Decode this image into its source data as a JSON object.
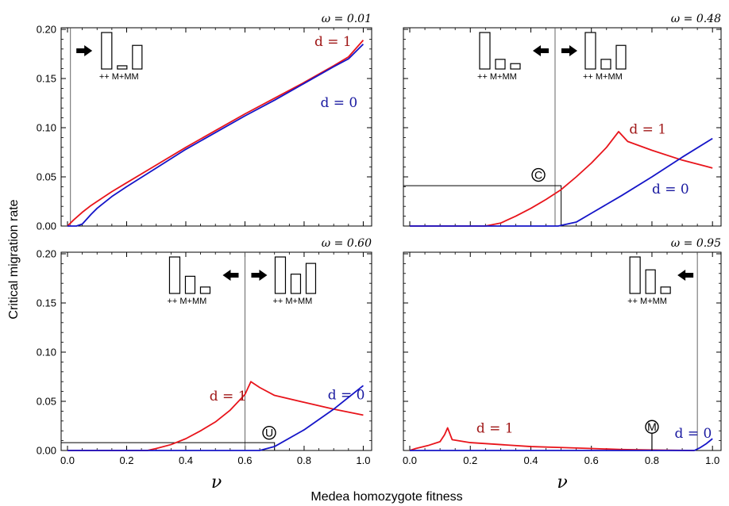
{
  "xlabel": "Medea homozygote fitness",
  "ylabel": "Critical migration rate",
  "nu_symbol": "ν",
  "genotype_label": "++ M+MM",
  "colors": {
    "d1": "#e8141b",
    "d0": "#1515c8",
    "d1_label": "#a01818",
    "d0_label": "#1a1aa0"
  },
  "chart_data": [
    {
      "type": "line",
      "panel": "top-left",
      "omega_label": "ω = 0.01",
      "xlim": [
        0,
        1
      ],
      "ylim": [
        0,
        0.2
      ],
      "xticks": [
        "0.0",
        "0.2",
        "0.4",
        "0.6",
        "0.8",
        "1.0"
      ],
      "yticks": [
        "0.00",
        "0.05",
        "0.10",
        "0.15",
        "0.20"
      ],
      "show_xticks": false,
      "show_yticks": true,
      "show_nu": false,
      "vline": 0.01,
      "arrows": [
        "right"
      ],
      "bar_groups": [
        {
          "heights": [
            0.34,
            0.03,
            0.22
          ],
          "arrow_side": "left"
        }
      ],
      "series": [
        {
          "name": "d = 1",
          "color": "d1",
          "x": [
            0,
            0.02,
            0.05,
            0.08,
            0.1,
            0.15,
            0.2,
            0.3,
            0.4,
            0.5,
            0.6,
            0.7,
            0.8,
            0.9,
            0.95,
            1.0
          ],
          "y": [
            0,
            0.006,
            0.014,
            0.021,
            0.025,
            0.035,
            0.044,
            0.062,
            0.08,
            0.097,
            0.114,
            0.13,
            0.146,
            0.163,
            0.172,
            0.189
          ]
        },
        {
          "name": "d = 0",
          "color": "d0",
          "x": [
            0,
            0.03,
            0.05,
            0.08,
            0.1,
            0.15,
            0.2,
            0.3,
            0.4,
            0.5,
            0.6,
            0.7,
            0.8,
            0.9,
            0.95,
            1.0
          ],
          "y": [
            0,
            0,
            0.002,
            0.012,
            0.018,
            0.03,
            0.04,
            0.059,
            0.078,
            0.095,
            0.112,
            0.128,
            0.145,
            0.162,
            0.17,
            0.185
          ]
        }
      ],
      "series_labels": [
        {
          "text": "d = 1",
          "color": "d1_label",
          "x": 0.835,
          "y": 0.183
        },
        {
          "text": "d = 0",
          "color": "d0_label",
          "x": 0.855,
          "y": 0.121
        }
      ]
    },
    {
      "type": "line",
      "panel": "top-right",
      "omega_label": "ω = 0.48",
      "xlim": [
        0,
        1
      ],
      "ylim": [
        0,
        0.2
      ],
      "show_xticks": false,
      "show_yticks": false,
      "show_nu": false,
      "vline": 0.48,
      "arrows": [
        "left",
        "right"
      ],
      "bar_groups": [
        {
          "heights": [
            0.34,
            0.09,
            0.05
          ]
        },
        {
          "heights": [
            0.34,
            0.09,
            0.22
          ]
        }
      ],
      "markers": [
        {
          "letter": "C",
          "x": 0.49,
          "y": 0.041,
          "label_x": 0.425,
          "label_y": 0.052,
          "stem_bottom": 0
        }
      ],
      "crosshair": {
        "x": 0.5,
        "y": 0.041
      },
      "series": [
        {
          "name": "d = 1",
          "color": "d1",
          "x": [
            0,
            0.25,
            0.3,
            0.35,
            0.4,
            0.45,
            0.5,
            0.55,
            0.6,
            0.65,
            0.69,
            0.72,
            0.8,
            0.9,
            1.0
          ],
          "y": [
            0,
            0,
            0.003,
            0.01,
            0.018,
            0.027,
            0.037,
            0.05,
            0.064,
            0.08,
            0.096,
            0.086,
            0.077,
            0.067,
            0.059
          ]
        },
        {
          "name": "d = 0",
          "color": "d0",
          "x": [
            0,
            0.49,
            0.55,
            0.6,
            0.7,
            0.8,
            0.9,
            1.0
          ],
          "y": [
            0,
            0,
            0.004,
            0.013,
            0.031,
            0.05,
            0.07,
            0.089
          ]
        }
      ],
      "series_labels": [
        {
          "text": "d = 1",
          "color": "d1_label",
          "x": 0.725,
          "y": 0.094
        },
        {
          "text": "d = 0",
          "color": "d0_label",
          "x": 0.8,
          "y": 0.033
        }
      ]
    },
    {
      "type": "line",
      "panel": "bottom-left",
      "omega_label": "ω = 0.60",
      "xlim": [
        0,
        1
      ],
      "ylim": [
        0,
        0.2
      ],
      "show_xticks": true,
      "show_yticks": true,
      "show_nu": true,
      "vline": 0.6,
      "arrows": [
        "left",
        "right"
      ],
      "bar_groups": [
        {
          "heights": [
            0.34,
            0.16,
            0.06
          ]
        },
        {
          "heights": [
            0.34,
            0.18,
            0.28
          ]
        }
      ],
      "markers": [
        {
          "letter": "U",
          "x": 0.7,
          "y": 0.008,
          "label_x": 0.682,
          "label_y": 0.018,
          "stem_bottom": 0
        }
      ],
      "crosshair": {
        "x": 0.7,
        "y": 0.008
      },
      "series": [
        {
          "name": "d = 1",
          "color": "d1",
          "x": [
            0,
            0.27,
            0.3,
            0.35,
            0.4,
            0.45,
            0.5,
            0.55,
            0.6,
            0.62,
            0.65,
            0.7,
            0.8,
            0.9,
            1.0
          ],
          "y": [
            0,
            0,
            0.002,
            0.006,
            0.012,
            0.02,
            0.029,
            0.041,
            0.057,
            0.07,
            0.064,
            0.056,
            0.049,
            0.042,
            0.036
          ]
        },
        {
          "name": "d = 0",
          "color": "d0",
          "x": [
            0,
            0.65,
            0.7,
            0.8,
            0.9,
            1.0
          ],
          "y": [
            0,
            0,
            0.004,
            0.021,
            0.042,
            0.066
          ]
        }
      ],
      "series_labels": [
        {
          "text": "d = 1",
          "color": "d1_label",
          "x": 0.48,
          "y": 0.051
        },
        {
          "text": "d = 0",
          "color": "d0_label",
          "x": 0.88,
          "y": 0.052
        }
      ]
    },
    {
      "type": "line",
      "panel": "bottom-right",
      "omega_label": "ω = 0.95",
      "xlim": [
        0,
        1
      ],
      "ylim": [
        0,
        0.2
      ],
      "show_xticks": true,
      "show_yticks": false,
      "show_nu": true,
      "vline": 0.95,
      "arrows": [
        "left"
      ],
      "bar_groups": [
        {
          "heights": [
            0.34,
            0.22,
            0.06
          ],
          "arrow_side": "right"
        }
      ],
      "markers": [
        {
          "letter": "M",
          "x": 0.8,
          "y": 0.0,
          "label_x": 0.8,
          "label_y": 0.024,
          "stem_bottom": 0
        }
      ],
      "series": [
        {
          "name": "d = 1",
          "color": "d1",
          "x": [
            0,
            0.02,
            0.06,
            0.1,
            0.115,
            0.125,
            0.14,
            0.2,
            0.3,
            0.4,
            0.5,
            0.6,
            0.7,
            0.8,
            0.94
          ],
          "y": [
            0,
            0.002,
            0.005,
            0.009,
            0.016,
            0.023,
            0.011,
            0.008,
            0.006,
            0.004,
            0.003,
            0.002,
            0.001,
            0.0005,
            0
          ]
        },
        {
          "name": "d = 0",
          "color": "d0",
          "x": [
            0,
            0.94,
            0.96,
            0.98,
            1.0
          ],
          "y": [
            0,
            0,
            0.003,
            0.007,
            0.012
          ]
        }
      ],
      "series_labels": [
        {
          "text": "d = 1",
          "color": "d1_label",
          "x": 0.22,
          "y": 0.018
        },
        {
          "text": "d = 0",
          "color": "d0_label",
          "x": 0.875,
          "y": 0.013
        }
      ]
    }
  ]
}
